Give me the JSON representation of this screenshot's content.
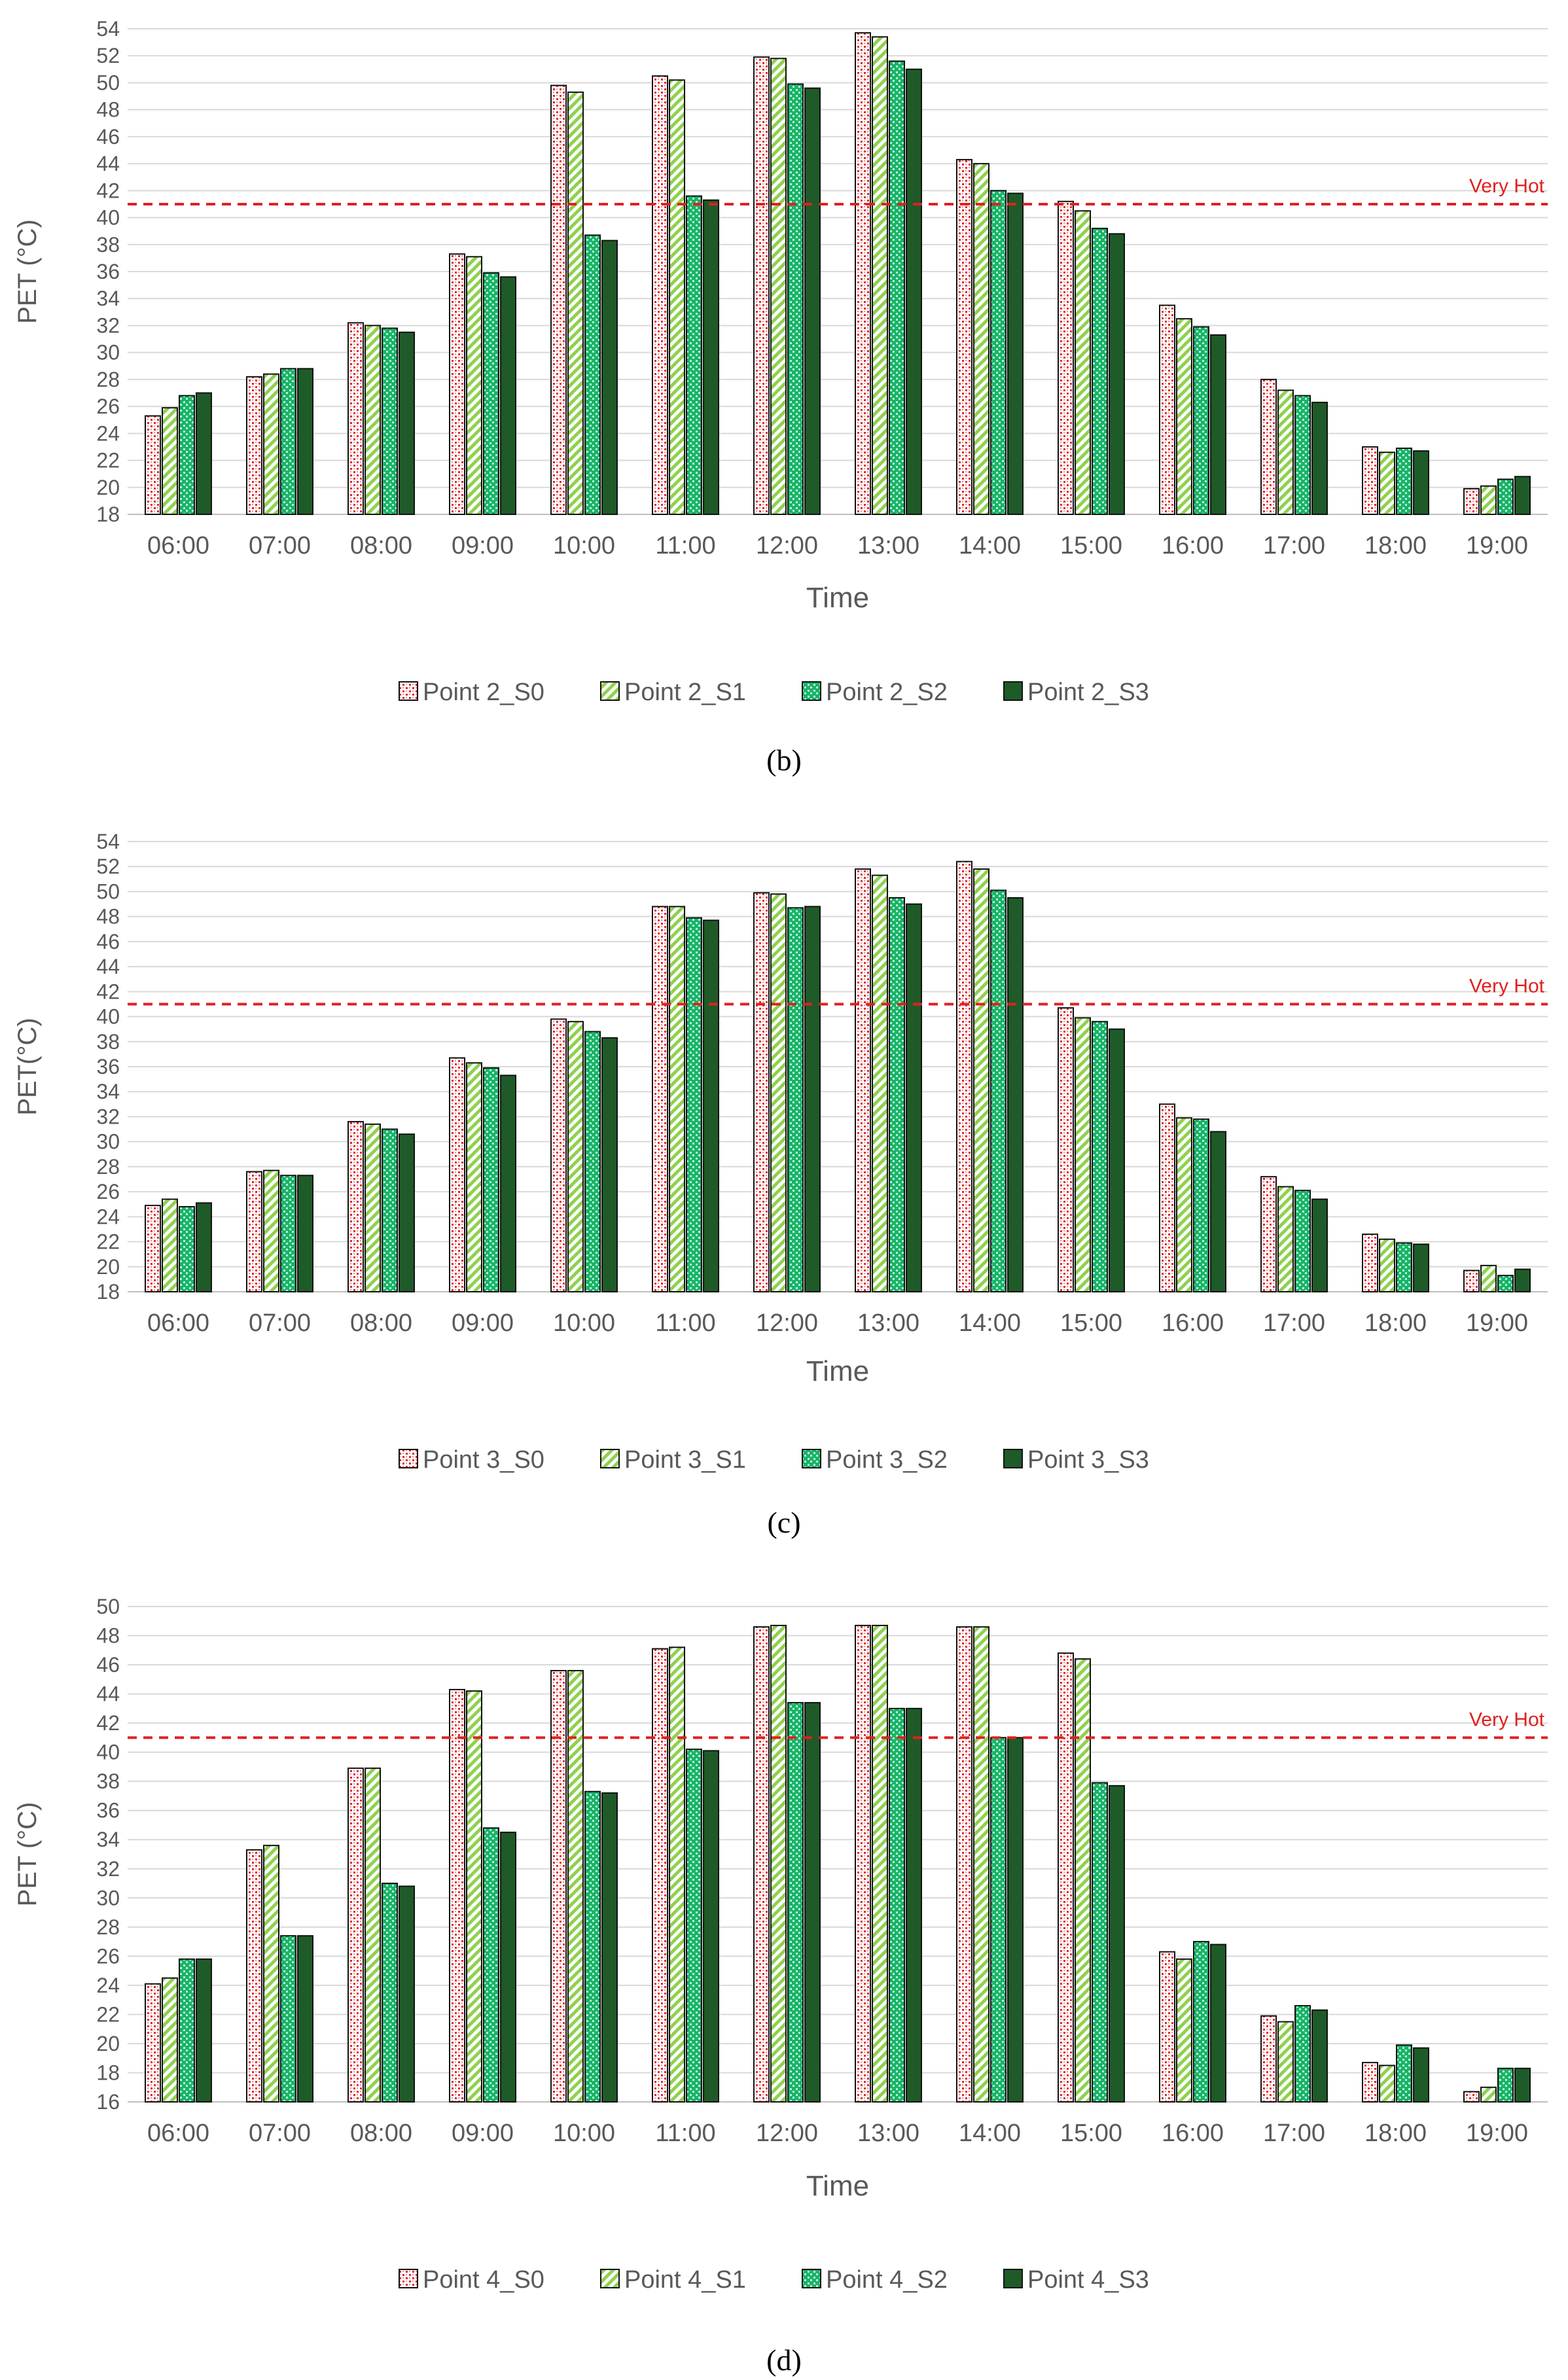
{
  "colors": {
    "s0_fill": "#ffffff",
    "s0_pattern": "#e0242b",
    "s1_fill": "#ffffff",
    "s1_pattern": "#8fd14f",
    "s2_fill": "#19b36a",
    "s2_pattern": "#b8f5d2",
    "s3_fill": "#1e5b28",
    "threshold": "#e0201f",
    "grid": "#d9d9d9",
    "axis_text": "#595959"
  },
  "chart_data": [
    {
      "type": "bar",
      "caption": "(b)",
      "ylabel": "PET (°C)",
      "xlabel": "Time",
      "ylim": [
        18,
        54
      ],
      "ytick_step": 2,
      "yticks": [
        "18",
        "20",
        "22",
        "24",
        "26",
        "28",
        "30",
        "32",
        "34",
        "36",
        "38",
        "40",
        "42",
        "44",
        "46",
        "48",
        "50",
        "52",
        "54"
      ],
      "categories": [
        "06:00",
        "07:00",
        "08:00",
        "09:00",
        "10:00",
        "11:00",
        "12:00",
        "13:00",
        "14:00",
        "15:00",
        "16:00",
        "17:00",
        "18:00",
        "19:00"
      ],
      "threshold": {
        "value": 41,
        "label": "Very Hot"
      },
      "series": [
        {
          "name": "Point 2_S0",
          "values": [
            25.3,
            28.2,
            32.2,
            37.3,
            49.8,
            50.5,
            51.9,
            53.7,
            44.3,
            41.2,
            33.5,
            28.0,
            23.0,
            19.9
          ]
        },
        {
          "name": "Point 2_S1",
          "values": [
            25.9,
            28.4,
            32.0,
            37.1,
            49.3,
            50.2,
            51.8,
            53.4,
            44.0,
            40.5,
            32.5,
            27.2,
            22.6,
            20.1
          ]
        },
        {
          "name": "Point 2_S2",
          "values": [
            26.8,
            28.8,
            31.8,
            35.9,
            38.7,
            41.6,
            49.9,
            51.6,
            42.0,
            39.2,
            31.9,
            26.8,
            22.9,
            20.6
          ]
        },
        {
          "name": "Point 2_S3",
          "values": [
            27.0,
            28.8,
            31.5,
            35.6,
            38.3,
            41.3,
            49.6,
            51.0,
            41.8,
            38.8,
            31.3,
            26.3,
            22.7,
            20.8
          ]
        }
      ]
    },
    {
      "type": "bar",
      "caption": "(c)",
      "ylabel": "PET(°C)",
      "xlabel": "Time",
      "ylim": [
        18,
        54
      ],
      "ytick_step": 2,
      "yticks": [
        "18",
        "20",
        "22",
        "24",
        "26",
        "28",
        "30",
        "32",
        "34",
        "36",
        "38",
        "40",
        "42",
        "44",
        "46",
        "48",
        "50",
        "52",
        "54"
      ],
      "categories": [
        "06:00",
        "07:00",
        "08:00",
        "09:00",
        "10:00",
        "11:00",
        "12:00",
        "13:00",
        "14:00",
        "15:00",
        "16:00",
        "17:00",
        "18:00",
        "19:00"
      ],
      "threshold": {
        "value": 41,
        "label": "Very Hot"
      },
      "series": [
        {
          "name": "Point 3_S0",
          "values": [
            24.9,
            27.6,
            31.6,
            36.7,
            39.8,
            48.8,
            49.9,
            51.8,
            52.4,
            40.7,
            33.0,
            27.2,
            22.6,
            19.7
          ]
        },
        {
          "name": "Point 3_S1",
          "values": [
            25.4,
            27.7,
            31.4,
            36.3,
            39.6,
            48.8,
            49.8,
            51.3,
            51.8,
            39.9,
            31.9,
            26.4,
            22.2,
            20.1
          ]
        },
        {
          "name": "Point 3_S2",
          "values": [
            24.8,
            27.3,
            31.0,
            35.9,
            38.8,
            47.9,
            48.7,
            49.5,
            50.1,
            39.6,
            31.8,
            26.1,
            21.9,
            19.3
          ]
        },
        {
          "name": "Point 3_S3",
          "values": [
            25.1,
            27.3,
            30.6,
            35.3,
            38.3,
            47.7,
            48.8,
            49.0,
            49.5,
            39.0,
            30.8,
            25.4,
            21.8,
            19.8
          ]
        }
      ]
    },
    {
      "type": "bar",
      "caption": "(d)",
      "ylabel": "PET (°C)",
      "xlabel": "Time",
      "ylim": [
        16,
        50
      ],
      "ytick_step": 2,
      "yticks": [
        "16",
        "18",
        "20",
        "22",
        "24",
        "26",
        "28",
        "30",
        "32",
        "34",
        "36",
        "38",
        "40",
        "42",
        "44",
        "46",
        "48",
        "50"
      ],
      "categories": [
        "06:00",
        "07:00",
        "08:00",
        "09:00",
        "10:00",
        "11:00",
        "12:00",
        "13:00",
        "14:00",
        "15:00",
        "16:00",
        "17:00",
        "18:00",
        "19:00"
      ],
      "threshold": {
        "value": 41,
        "label": "Very Hot"
      },
      "series": [
        {
          "name": "Point 4_S0",
          "values": [
            24.1,
            33.3,
            38.9,
            44.3,
            45.6,
            47.1,
            48.6,
            48.7,
            48.6,
            46.8,
            26.3,
            21.9,
            18.7,
            16.7
          ]
        },
        {
          "name": "Point 4_S1",
          "values": [
            24.5,
            33.6,
            38.9,
            44.2,
            45.6,
            47.2,
            48.7,
            48.7,
            48.6,
            46.4,
            25.8,
            21.5,
            18.5,
            17.0
          ]
        },
        {
          "name": "Point 4_S2",
          "values": [
            25.8,
            27.4,
            31.0,
            34.8,
            37.3,
            40.2,
            43.4,
            43.0,
            41.0,
            37.9,
            27.0,
            22.6,
            19.9,
            18.3
          ]
        },
        {
          "name": "Point 4_S3",
          "values": [
            25.8,
            27.4,
            30.8,
            34.5,
            37.2,
            40.1,
            43.4,
            43.0,
            41.0,
            37.7,
            26.8,
            22.3,
            19.7,
            18.3
          ]
        }
      ]
    }
  ]
}
